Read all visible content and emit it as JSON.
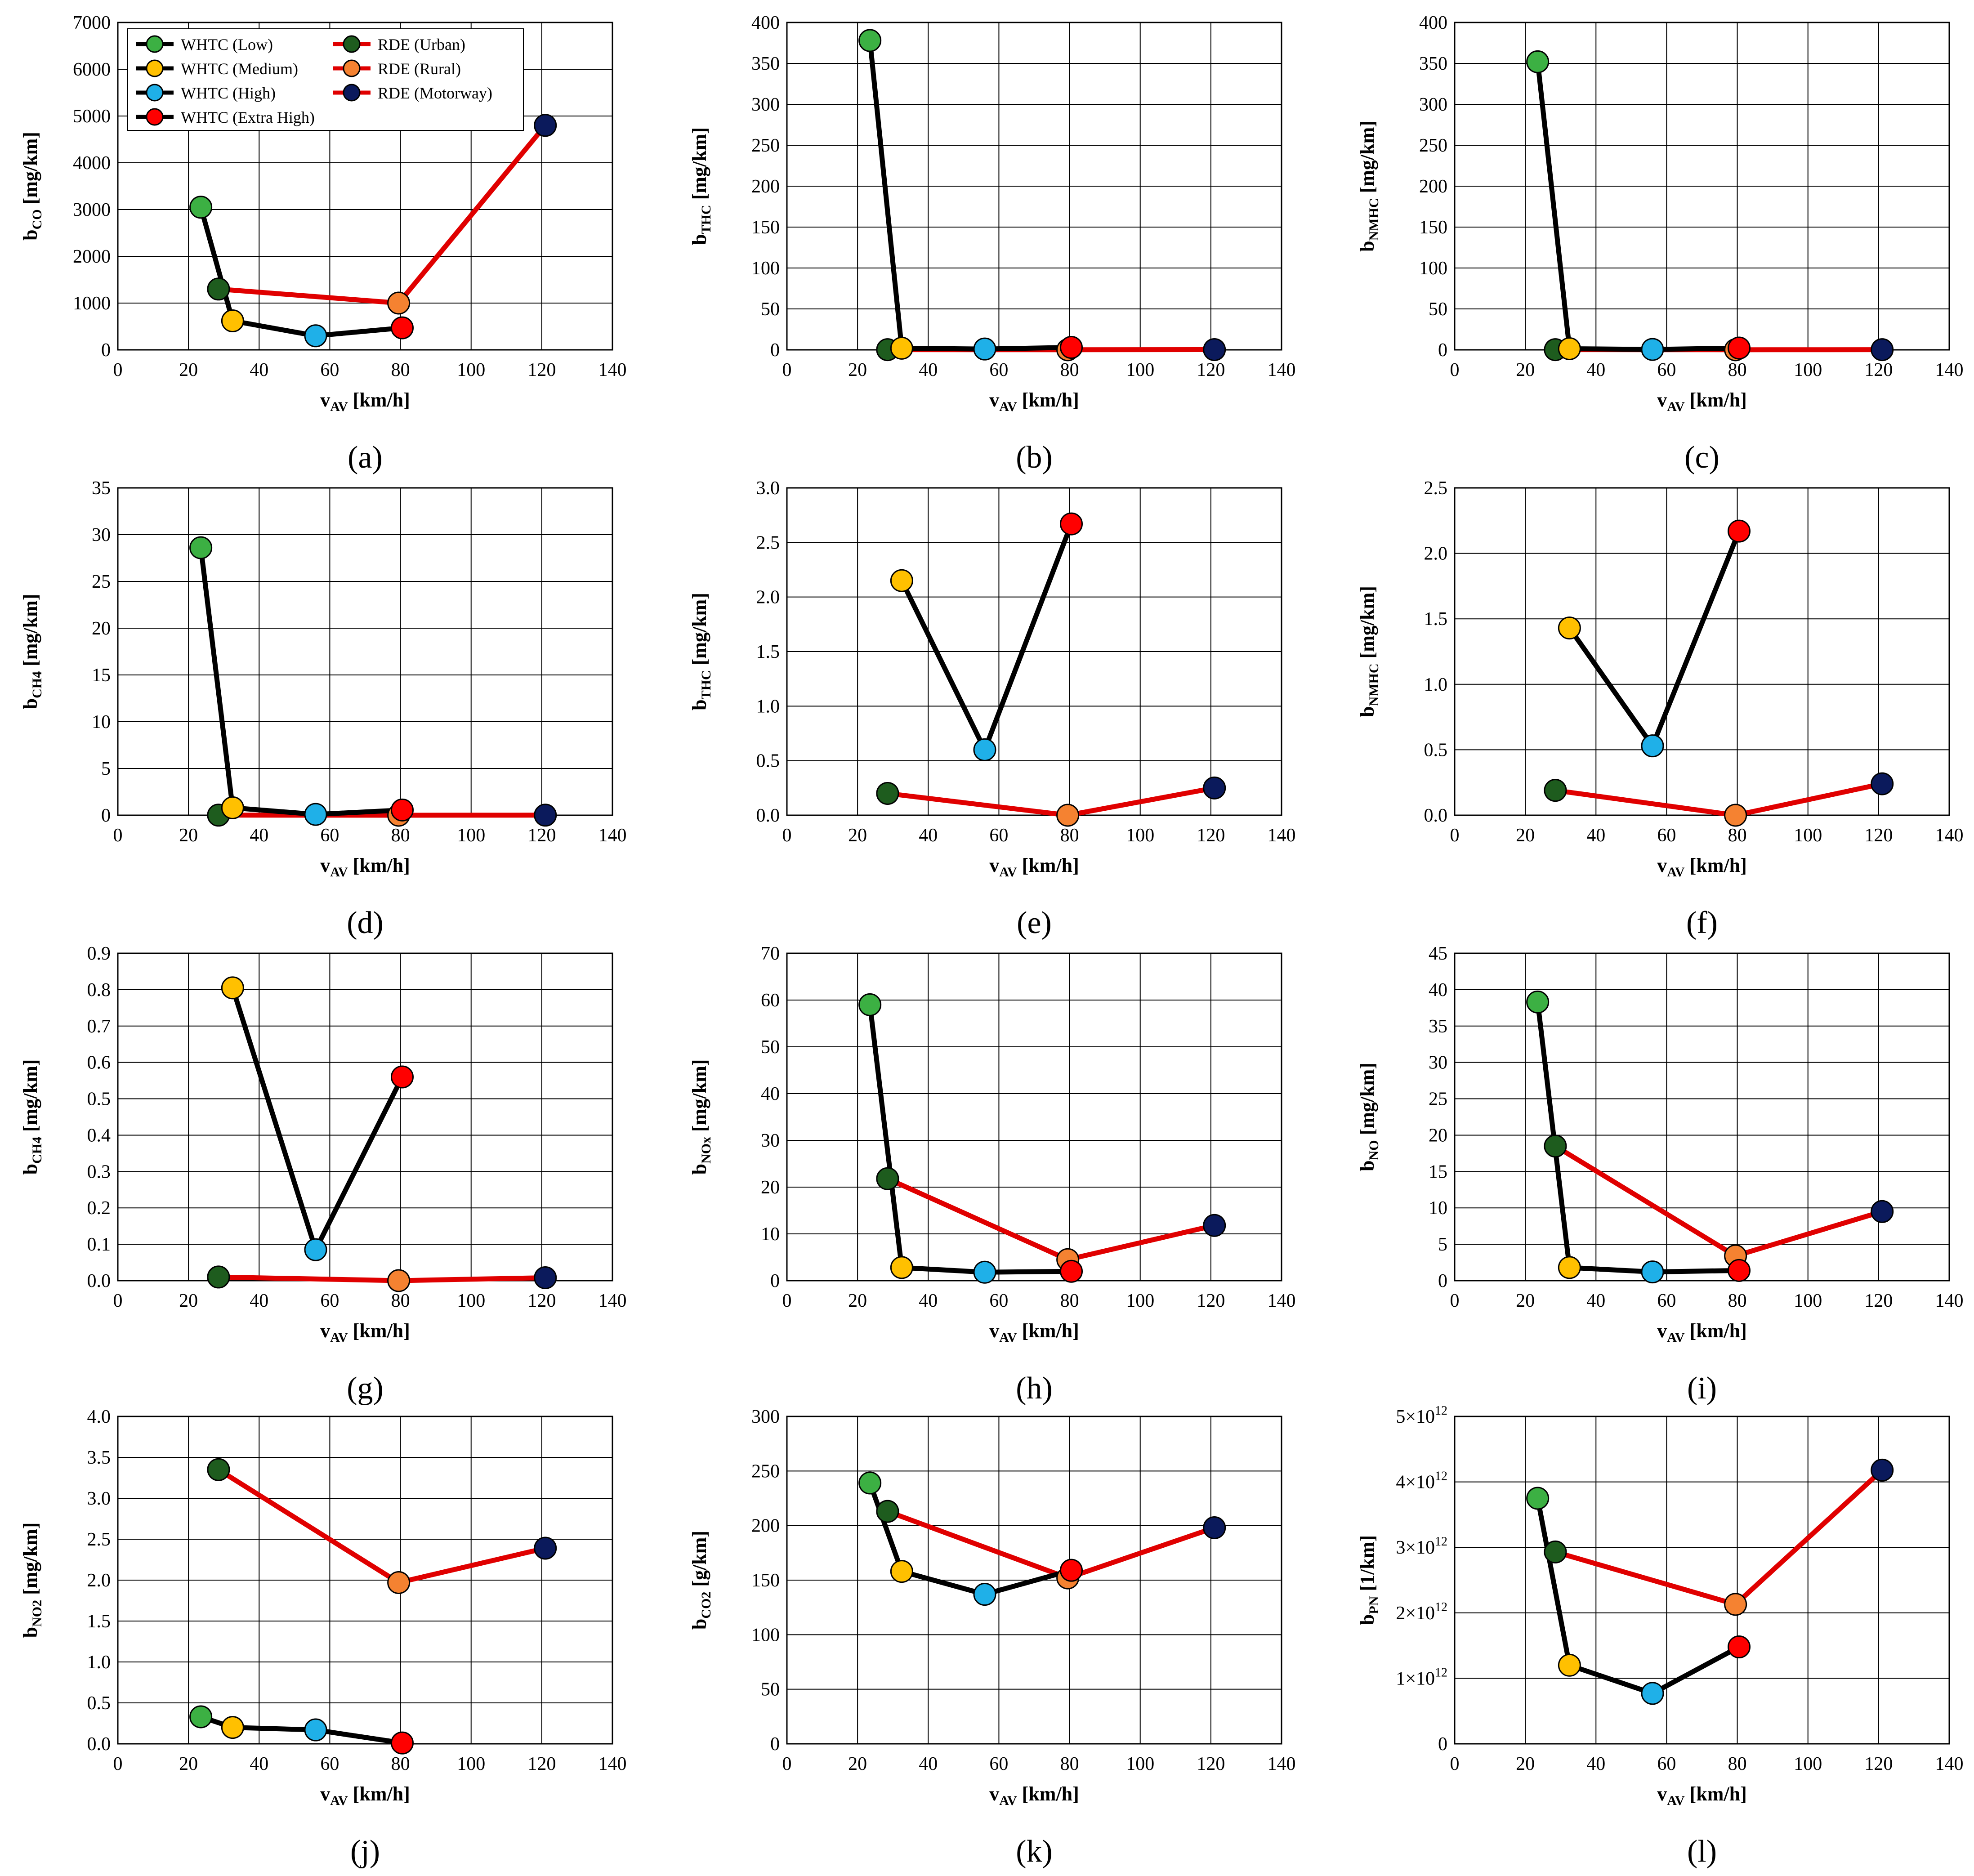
{
  "figure": {
    "series_legend": [
      {
        "name": "WHTC (Low)",
        "group": "WHTC",
        "color": "#3cb043"
      },
      {
        "name": "WHTC (Medium)",
        "group": "WHTC",
        "color": "#ffc000"
      },
      {
        "name": "WHTC (High)",
        "group": "WHTC",
        "color": "#1fb0e8"
      },
      {
        "name": "WHTC (Extra High)",
        "group": "WHTC",
        "color": "#ff0000"
      },
      {
        "name": "RDE (Urban)",
        "group": "RDE",
        "color": "#1e5c1e"
      },
      {
        "name": "RDE (Rural)",
        "group": "RDE",
        "color": "#f58231"
      },
      {
        "name": "RDE (Motorway)",
        "group": "RDE",
        "color": "#0b1a5c"
      }
    ],
    "line_colors": {
      "WHTC": "#000000",
      "RDE": "#e00000"
    }
  },
  "chart_data": [
    {
      "panel": "(a)",
      "type": "line",
      "ylabel_main": "b",
      "ylabel_sub": "CO",
      "ylabel_unit": " [mg/km]",
      "xlabel_main": "v",
      "xlabel_sub": "AV",
      "xlabel_unit": " [km/h]",
      "xlim": [
        0,
        140
      ],
      "xticks": [
        0,
        20,
        40,
        60,
        80,
        100,
        120,
        140
      ],
      "ylim": [
        0,
        7000
      ],
      "yticks": [
        0,
        1000,
        2000,
        3000,
        4000,
        5000,
        6000,
        7000
      ],
      "ytick_labels": [
        "0",
        "1000",
        "2000",
        "3000",
        "4000",
        "5000",
        "6000",
        "7000"
      ],
      "whtc": {
        "x": [
          23.5,
          32.5,
          56,
          80.5
        ],
        "y": [
          3050,
          620,
          300,
          470
        ]
      },
      "rde": {
        "x": [
          28.5,
          79.5,
          121
        ],
        "y": [
          1300,
          1000,
          4800
        ]
      }
    },
    {
      "panel": "(b)",
      "type": "line",
      "ylabel_main": "b",
      "ylabel_sub": "THC",
      "ylabel_unit": " [mg/km]",
      "xlabel_main": "v",
      "xlabel_sub": "AV",
      "xlabel_unit": " [km/h]",
      "xlim": [
        0,
        140
      ],
      "xticks": [
        0,
        20,
        40,
        60,
        80,
        100,
        120,
        140
      ],
      "ylim": [
        0,
        400
      ],
      "yticks": [
        0,
        50,
        100,
        150,
        200,
        250,
        300,
        350,
        400
      ],
      "ytick_labels": [
        "0",
        "50",
        "100",
        "150",
        "200",
        "250",
        "300",
        "350",
        "400"
      ],
      "whtc": {
        "x": [
          23.5,
          32.5,
          56,
          80.5
        ],
        "y": [
          378,
          2,
          1,
          3
        ]
      },
      "rde": {
        "x": [
          28.5,
          79.5,
          121
        ],
        "y": [
          0.2,
          0.1,
          0.3
        ]
      }
    },
    {
      "panel": "(c)",
      "type": "line",
      "ylabel_main": "b",
      "ylabel_sub": "NMHC",
      "ylabel_unit": " [mg/km]",
      "xlabel_main": "v",
      "xlabel_sub": "AV",
      "xlabel_unit": " [km/h]",
      "xlim": [
        0,
        140
      ],
      "xticks": [
        0,
        20,
        40,
        60,
        80,
        100,
        120,
        140
      ],
      "ylim": [
        0,
        400
      ],
      "yticks": [
        0,
        50,
        100,
        150,
        200,
        250,
        300,
        350,
        400
      ],
      "ytick_labels": [
        "0",
        "50",
        "100",
        "150",
        "200",
        "250",
        "300",
        "350",
        "400"
      ],
      "whtc": {
        "x": [
          23.5,
          32.5,
          56,
          80.5
        ],
        "y": [
          352,
          1.4,
          0.5,
          2.2
        ]
      },
      "rde": {
        "x": [
          28.5,
          79.5,
          121
        ],
        "y": [
          0.2,
          0.1,
          0.2
        ]
      }
    },
    {
      "panel": "(d)",
      "type": "line",
      "ylabel_main": "b",
      "ylabel_sub": "CH4",
      "ylabel_unit": " [mg/km]",
      "xlabel_main": "v",
      "xlabel_sub": "AV",
      "xlabel_unit": " [km/h]",
      "xlim": [
        0,
        140
      ],
      "xticks": [
        0,
        20,
        40,
        60,
        80,
        100,
        120,
        140
      ],
      "ylim": [
        0,
        35
      ],
      "yticks": [
        0,
        5,
        10,
        15,
        20,
        25,
        30,
        35
      ],
      "ytick_labels": [
        "0",
        "5",
        "10",
        "15",
        "20",
        "25",
        "30",
        "35"
      ],
      "whtc": {
        "x": [
          23.5,
          32.5,
          56,
          80.5
        ],
        "y": [
          28.6,
          0.8,
          0.09,
          0.56
        ]
      },
      "rde": {
        "x": [
          28.5,
          79.5,
          121
        ],
        "y": [
          0.01,
          0.0,
          0.01
        ]
      }
    },
    {
      "panel": "(e)",
      "type": "line",
      "ylabel_main": "b",
      "ylabel_sub": "THC",
      "ylabel_unit": " [mg/km]",
      "xlabel_main": "v",
      "xlabel_sub": "AV",
      "xlabel_unit": " [km/h]",
      "xlim": [
        0,
        140
      ],
      "xticks": [
        0,
        20,
        40,
        60,
        80,
        100,
        120,
        140
      ],
      "ylim": [
        0,
        3
      ],
      "yticks": [
        0,
        0.5,
        1,
        1.5,
        2,
        2.5,
        3
      ],
      "ytick_labels": [
        "0.0",
        "0.5",
        "1.0",
        "1.5",
        "2.0",
        "2.5",
        "3.0"
      ],
      "whtc": {
        "x": [
          32.5,
          56,
          80.5
        ],
        "y": [
          2.15,
          0.6,
          2.67
        ]
      },
      "rde": {
        "x": [
          28.5,
          79.5,
          121
        ],
        "y": [
          0.2,
          0.0,
          0.25
        ]
      }
    },
    {
      "panel": "(f)",
      "type": "line",
      "ylabel_main": "b",
      "ylabel_sub": "NMHC",
      "ylabel_unit": " [mg/km]",
      "xlabel_main": "v",
      "xlabel_sub": "AV",
      "xlabel_unit": " [km/h]",
      "xlim": [
        0,
        140
      ],
      "xticks": [
        0,
        20,
        40,
        60,
        80,
        100,
        120,
        140
      ],
      "ylim": [
        0,
        2.5
      ],
      "yticks": [
        0,
        0.5,
        1,
        1.5,
        2,
        2.5
      ],
      "ytick_labels": [
        "0.0",
        "0.5",
        "1.0",
        "1.5",
        "2.0",
        "2.5"
      ],
      "whtc": {
        "x": [
          32.5,
          56,
          80.5
        ],
        "y": [
          1.43,
          0.53,
          2.17
        ]
      },
      "rde": {
        "x": [
          28.5,
          79.5,
          121
        ],
        "y": [
          0.19,
          0.0,
          0.24
        ]
      }
    },
    {
      "panel": "(g)",
      "type": "line",
      "ylabel_main": "b",
      "ylabel_sub": "CH4",
      "ylabel_unit": " [mg/km]",
      "xlabel_main": "v",
      "xlabel_sub": "AV",
      "xlabel_unit": " [km/h]",
      "xlim": [
        0,
        140
      ],
      "xticks": [
        0,
        20,
        40,
        60,
        80,
        100,
        120,
        140
      ],
      "ylim": [
        0,
        0.9
      ],
      "yticks": [
        0,
        0.1,
        0.2,
        0.3,
        0.4,
        0.5,
        0.6,
        0.7,
        0.8,
        0.9
      ],
      "ytick_labels": [
        "0.0",
        "0.1",
        "0.2",
        "0.3",
        "0.4",
        "0.5",
        "0.6",
        "0.7",
        "0.8",
        "0.9"
      ],
      "whtc": {
        "x": [
          32.5,
          56,
          80.5
        ],
        "y": [
          0.805,
          0.085,
          0.56
        ]
      },
      "rde": {
        "x": [
          28.5,
          79.5,
          121
        ],
        "y": [
          0.01,
          0.0,
          0.008
        ]
      }
    },
    {
      "panel": "(h)",
      "type": "line",
      "ylabel_main": "b",
      "ylabel_sub": "NOx",
      "ylabel_unit": " [mg/km]",
      "xlabel_main": "v",
      "xlabel_sub": "AV",
      "xlabel_unit": " [km/h]",
      "xlim": [
        0,
        140
      ],
      "xticks": [
        0,
        20,
        40,
        60,
        80,
        100,
        120,
        140
      ],
      "ylim": [
        0,
        70
      ],
      "yticks": [
        0,
        10,
        20,
        30,
        40,
        50,
        60,
        70
      ],
      "ytick_labels": [
        "0",
        "10",
        "20",
        "30",
        "40",
        "50",
        "60",
        "70"
      ],
      "whtc": {
        "x": [
          23.5,
          32.5,
          56,
          80.5
        ],
        "y": [
          59,
          2.8,
          1.8,
          2.0
        ]
      },
      "rde": {
        "x": [
          28.5,
          79.5,
          121
        ],
        "y": [
          21.8,
          4.5,
          11.8
        ]
      }
    },
    {
      "panel": "(i)",
      "type": "line",
      "ylabel_main": "b",
      "ylabel_sub": "NO",
      "ylabel_unit": " [mg/km]",
      "xlabel_main": "v",
      "xlabel_sub": "AV",
      "xlabel_unit": " [km/h]",
      "xlim": [
        0,
        140
      ],
      "xticks": [
        0,
        20,
        40,
        60,
        80,
        100,
        120,
        140
      ],
      "ylim": [
        0,
        45
      ],
      "yticks": [
        0,
        5,
        10,
        15,
        20,
        25,
        30,
        35,
        40,
        45
      ],
      "ytick_labels": [
        "0",
        "5",
        "10",
        "15",
        "20",
        "25",
        "30",
        "35",
        "40",
        "45"
      ],
      "whtc": {
        "x": [
          23.5,
          32.5,
          56,
          80.5
        ],
        "y": [
          38.3,
          1.8,
          1.2,
          1.4
        ]
      },
      "rde": {
        "x": [
          28.5,
          79.5,
          121
        ],
        "y": [
          18.5,
          3.4,
          9.5
        ]
      }
    },
    {
      "panel": "(j)",
      "type": "line",
      "ylabel_main": "b",
      "ylabel_sub": "NO2",
      "ylabel_unit": " [mg/km]",
      "xlabel_main": "v",
      "xlabel_sub": "AV",
      "xlabel_unit": " [km/h]",
      "xlim": [
        0,
        140
      ],
      "xticks": [
        0,
        20,
        40,
        60,
        80,
        100,
        120,
        140
      ],
      "ylim": [
        0,
        4
      ],
      "yticks": [
        0,
        0.5,
        1,
        1.5,
        2,
        2.5,
        3,
        3.5,
        4
      ],
      "ytick_labels": [
        "0.0",
        "0.5",
        "1.0",
        "1.5",
        "2.0",
        "2.5",
        "3.0",
        "3.5",
        "4.0"
      ],
      "whtc": {
        "x": [
          23.5,
          32.5,
          56,
          80.5
        ],
        "y": [
          0.33,
          0.2,
          0.17,
          0.01
        ]
      },
      "rde": {
        "x": [
          28.5,
          79.5,
          121
        ],
        "y": [
          3.35,
          1.97,
          2.39
        ]
      }
    },
    {
      "panel": "(k)",
      "type": "line",
      "ylabel_main": "b",
      "ylabel_sub": "CO2",
      "ylabel_unit": " [g/km]",
      "xlabel_main": "v",
      "xlabel_sub": "AV",
      "xlabel_unit": " [km/h]",
      "xlim": [
        0,
        140
      ],
      "xticks": [
        0,
        20,
        40,
        60,
        80,
        100,
        120,
        140
      ],
      "ylim": [
        0,
        300
      ],
      "yticks": [
        0,
        50,
        100,
        150,
        200,
        250,
        300
      ],
      "ytick_labels": [
        "0",
        "50",
        "100",
        "150",
        "200",
        "250",
        "300"
      ],
      "whtc": {
        "x": [
          23.5,
          32.5,
          56,
          80.5
        ],
        "y": [
          239,
          158,
          137,
          159
        ]
      },
      "rde": {
        "x": [
          28.5,
          79.5,
          121
        ],
        "y": [
          213,
          152,
          198
        ]
      }
    },
    {
      "panel": "(l)",
      "type": "line",
      "ylabel_main": "b",
      "ylabel_sub": "PN",
      "ylabel_unit": " [1/km]",
      "xlabel_main": "v",
      "xlabel_sub": "AV",
      "xlabel_unit": " [km/h]",
      "xlim": [
        0,
        140
      ],
      "xticks": [
        0,
        20,
        40,
        60,
        80,
        100,
        120,
        140
      ],
      "ylim": [
        0,
        5000000000000.0
      ],
      "yticks": [
        0,
        1000000000000.0,
        2000000000000.0,
        3000000000000.0,
        4000000000000.0,
        5000000000000.0
      ],
      "ytick_labels": [
        "0",
        "1×10",
        "2×10",
        "3×10",
        "4×10",
        "5×10"
      ],
      "ytick_exponent": "12",
      "whtc": {
        "x": [
          23.5,
          32.5,
          56,
          80.5
        ],
        "y": [
          3750000000000.0,
          1200000000000.0,
          770000000000.0,
          1480000000000.0
        ]
      },
      "rde": {
        "x": [
          28.5,
          79.5,
          121
        ],
        "y": [
          2930000000000.0,
          2130000000000.0,
          4180000000000.0
        ]
      }
    }
  ]
}
